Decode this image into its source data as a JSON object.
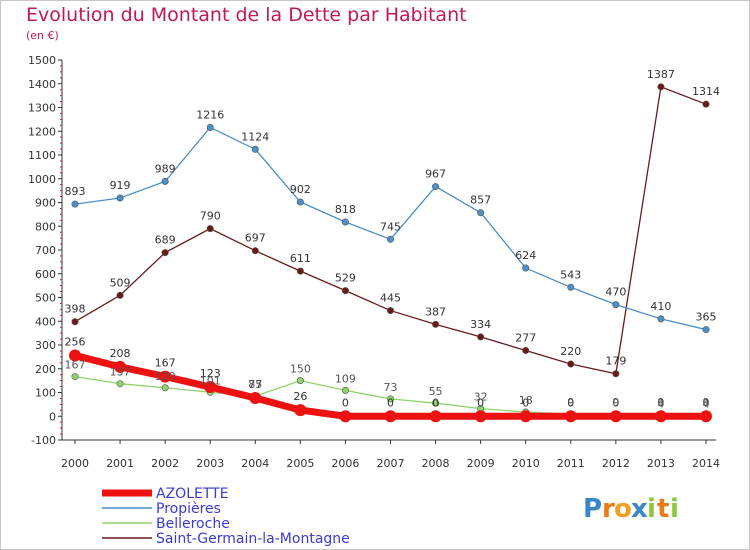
{
  "chart_data": {
    "type": "line",
    "title": "Evolution du Montant de la Dette par Habitant",
    "subtitle": "(en €)",
    "xlabel": "",
    "ylabel": "",
    "x": [
      2000,
      2001,
      2002,
      2003,
      2004,
      2005,
      2006,
      2007,
      2008,
      2009,
      2010,
      2011,
      2012,
      2013,
      2014
    ],
    "ylim": [
      -100,
      1500
    ],
    "ytick_step": 100,
    "grid": false,
    "legend_position": "bottom-left",
    "series": [
      {
        "name": "Saint-Germain-la-Montagne",
        "color": "#6b1a1a",
        "values": [
          398,
          509,
          689,
          790,
          697,
          611,
          529,
          445,
          387,
          334,
          277,
          220,
          179,
          1387,
          1314
        ],
        "labels_show": true
      },
      {
        "name": "Belleroche",
        "color": "#8fd26a",
        "values": [
          167,
          137,
          120,
          101,
          85,
          150,
          109,
          73,
          55,
          32,
          18,
          9,
          9,
          9,
          9
        ],
        "labels_show": false
      },
      {
        "name": "Propières",
        "color": "#4c8fc9",
        "values": [
          893,
          919,
          989,
          1216,
          1124,
          902,
          818,
          745,
          967,
          857,
          624,
          543,
          470,
          410,
          365
        ],
        "labels_show": true
      },
      {
        "name": "AZOLETTE",
        "color": "#ee1111",
        "values": [
          256,
          208,
          167,
          123,
          77,
          26,
          0,
          0,
          0,
          0,
          0,
          0,
          0,
          0,
          0
        ],
        "labels_show": true
      }
    ],
    "misc_labels": [
      "167",
      "137",
      "120",
      "101",
      "85",
      "150",
      "109",
      "73",
      "55",
      "32",
      "18",
      "9",
      "9",
      "9",
      "9",
      "4",
      "4"
    ]
  },
  "legend": [
    {
      "name": "AZOLETTE",
      "color": "#ee1111"
    },
    {
      "name": "Propières",
      "color": "#4c8fc9"
    },
    {
      "name": "Belleroche",
      "color": "#8fd26a"
    },
    {
      "name": "Saint-Germain-la-Montagne",
      "color": "#6b1a1a"
    }
  ],
  "logo": {
    "text": "Proxiti"
  }
}
